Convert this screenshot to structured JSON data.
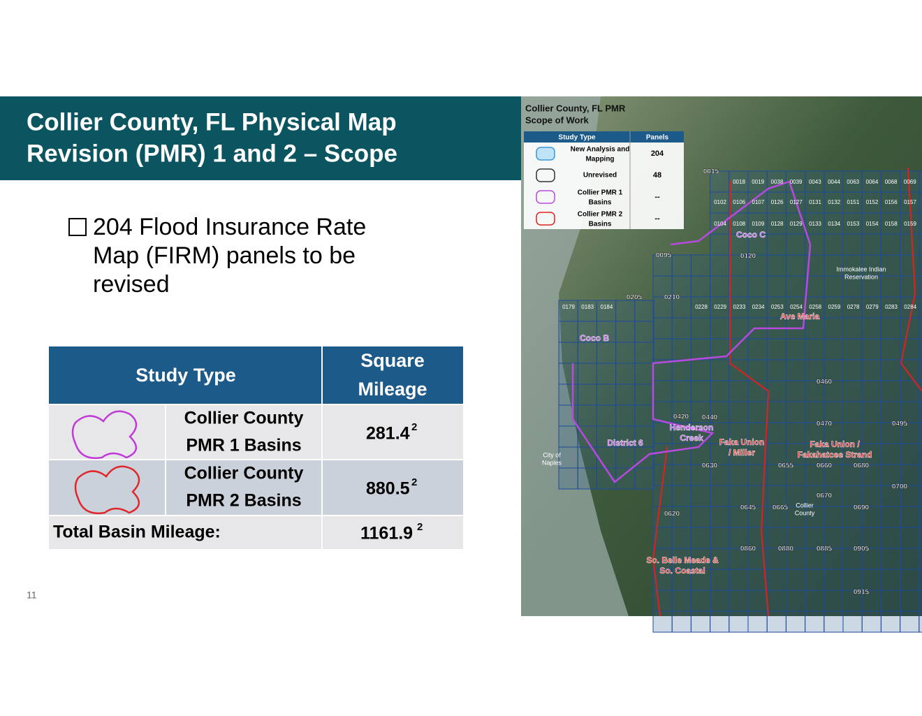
{
  "header": {
    "title_lines": [
      "Collier County, FL Physical Map",
      "Revision (PMR) 1 and 2 – Scope"
    ]
  },
  "bullet": {
    "lines": [
      "204 Flood Insurance Rate",
      "Map (FIRM) panels to be",
      "revised"
    ]
  },
  "table": {
    "header": [
      "Study Type",
      "Square",
      "Mileage"
    ],
    "rows": [
      {
        "label_lines": [
          "Collier County",
          "PMR 1 Basins"
        ],
        "value": "281.4",
        "exponent": "2"
      },
      {
        "label_lines": [
          "Collier County",
          "PMR 2 Basins"
        ],
        "value": "880.5",
        "exponent": "2"
      }
    ],
    "total": {
      "label": "Total Basin Mileage:",
      "value": "1161.9",
      "exponent": "2"
    }
  },
  "page_number": "11",
  "map": {
    "title_lines": [
      "Collier County, FL PMR",
      "Scope of Work"
    ],
    "legend": {
      "header": [
        "Study Type",
        "Panels"
      ],
      "rows": [
        [
          "New Analysis and",
          "Mapping",
          "204"
        ],
        [
          "Unrevised",
          "",
          "48"
        ],
        [
          "Collier PMR 1",
          "Basins",
          "--"
        ],
        [
          "Collier PMR 2",
          "Basins",
          "--"
        ]
      ]
    },
    "panels": [
      "0015",
      "0095",
      "0120",
      "0205",
      "0210",
      "0420",
      "0440",
      "0460",
      "0470",
      "0495",
      "0630",
      "0655",
      "0660",
      "0680",
      "0670",
      "0700",
      "0620",
      "0645",
      "0665",
      "0690",
      "0860",
      "0880",
      "0885",
      "0905",
      "0915"
    ],
    "panel_rows": [
      [
        "0018",
        "0019",
        "0038",
        "0039",
        "0043",
        "0044",
        "0063",
        "0064",
        "0068",
        "0069"
      ],
      [
        "0102",
        "0106",
        "0107",
        "0126",
        "0127",
        "0131",
        "0132",
        "0151",
        "0152",
        "0156",
        "0157"
      ],
      [
        "0104",
        "0108",
        "0109",
        "0128",
        "0129",
        "0133",
        "0134",
        "0153",
        "0154",
        "0158",
        "0159"
      ],
      [
        "0179",
        "0183",
        "0184"
      ],
      [
        "0228",
        "0229",
        "0233",
        "0234",
        "0253",
        "0254",
        "0258",
        "0259",
        "0278",
        "0279",
        "0283",
        "0284"
      ]
    ],
    "regions": [
      [
        "Coco C"
      ],
      [
        "Ave Maria"
      ],
      [
        "Coco B"
      ],
      [
        "Henderson",
        "Creek"
      ],
      [
        "District 6"
      ],
      [
        "Faka Union",
        "/ Miller"
      ],
      [
        "Faka Union /",
        "Fakahatcee Strand"
      ],
      [
        "So. Belle Meade &",
        "So. Coastal"
      ]
    ],
    "places": [
      [
        "City of",
        "Naples"
      ],
      [
        "Immokalee Indian",
        "Reservation"
      ],
      [
        "Collier",
        "County"
      ]
    ]
  }
}
